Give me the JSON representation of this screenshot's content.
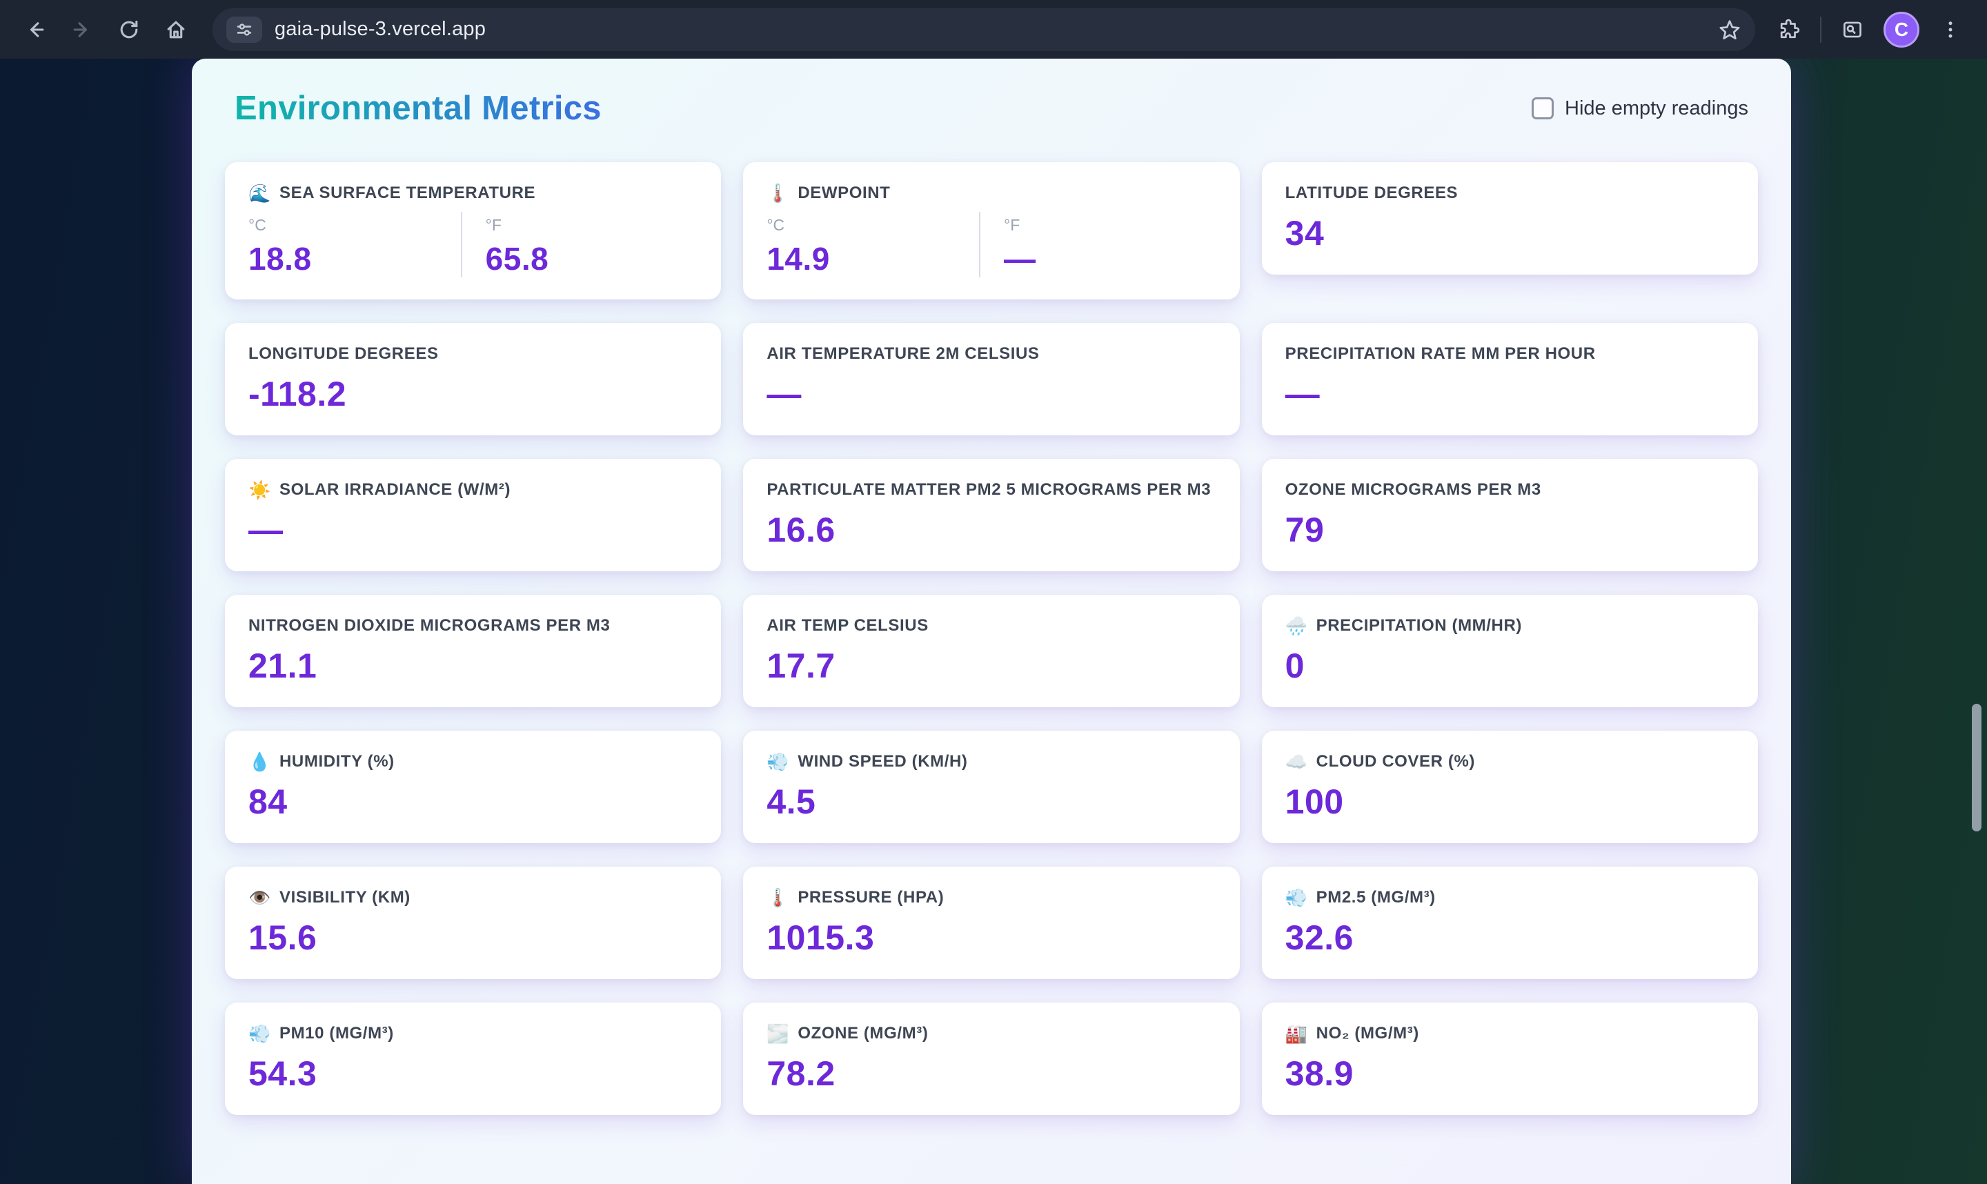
{
  "browser": {
    "url": "gaia-pulse-3.vercel.app",
    "avatar_letter": "C"
  },
  "page": {
    "title": "Environmental Metrics",
    "hide_empty_label": "Hide empty readings"
  },
  "cards": [
    {
      "icon": "🌊",
      "label": "SEA SURFACE TEMPERATURE",
      "units": [
        {
          "unit": "°C",
          "value": "18.8"
        },
        {
          "unit": "°F",
          "value": "65.8"
        }
      ]
    },
    {
      "icon": "🌡️",
      "label": "DEWPOINT",
      "units": [
        {
          "unit": "°C",
          "value": "14.9"
        },
        {
          "unit": "°F",
          "value": "—"
        }
      ]
    },
    {
      "label": "LATITUDE DEGREES",
      "value": "34"
    },
    {
      "label": "LONGITUDE DEGREES",
      "value": "-118.2"
    },
    {
      "label": "AIR TEMPERATURE 2M CELSIUS",
      "value": "—"
    },
    {
      "label": "PRECIPITATION RATE MM PER HOUR",
      "value": "—"
    },
    {
      "icon": "☀️",
      "label": "SOLAR IRRADIANCE (W/M²)",
      "value": "—"
    },
    {
      "label": "PARTICULATE MATTER PM2 5 MICROGRAMS PER M3",
      "value": "16.6"
    },
    {
      "label": "OZONE MICROGRAMS PER M3",
      "value": "79"
    },
    {
      "label": "NITROGEN DIOXIDE MICROGRAMS PER M3",
      "value": "21.1"
    },
    {
      "label": "AIR TEMP CELSIUS",
      "value": "17.7"
    },
    {
      "icon": "🌧️",
      "label": "PRECIPITATION (MM/HR)",
      "value": "0"
    },
    {
      "icon": "💧",
      "label": "HUMIDITY (%)",
      "value": "84"
    },
    {
      "icon": "💨",
      "label": "WIND SPEED (KM/H)",
      "value": "4.5"
    },
    {
      "icon": "☁️",
      "label": "CLOUD COVER (%)",
      "value": "100"
    },
    {
      "icon": "👁️",
      "label": "VISIBILITY (KM)",
      "value": "15.6"
    },
    {
      "icon": "🌡️",
      "label": "PRESSURE (HPA)",
      "value": "1015.3"
    },
    {
      "icon": "💨",
      "label": "PM2.5 (MG/M³)",
      "value": "32.6"
    },
    {
      "icon": "💨",
      "label": "PM10 (MG/M³)",
      "value": "54.3"
    },
    {
      "icon": "🌫️",
      "label": "OZONE (MG/M³)",
      "value": "78.2"
    },
    {
      "icon": "🏭",
      "label": "NO₂ (MG/M³)",
      "value": "38.9"
    }
  ]
}
